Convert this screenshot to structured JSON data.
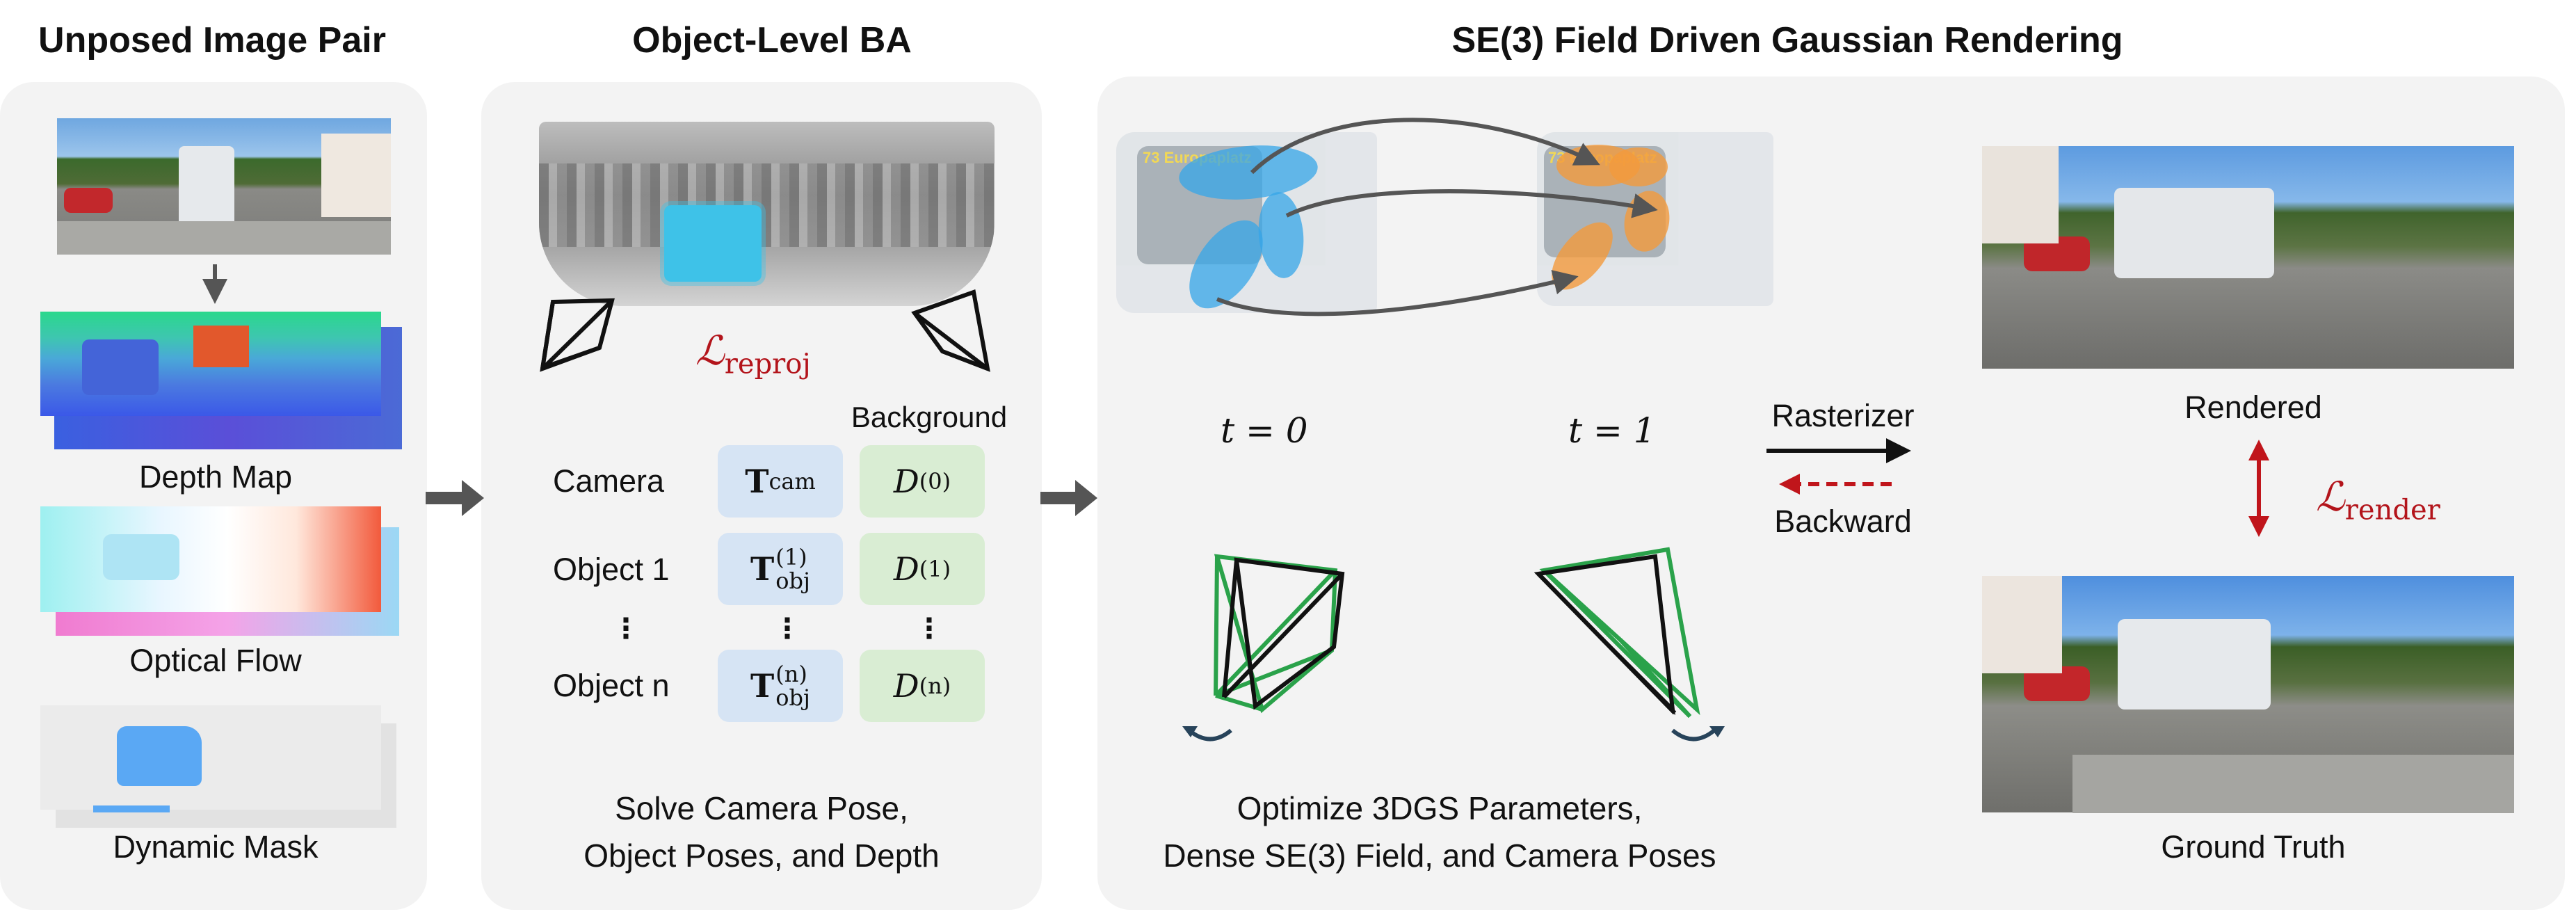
{
  "titles": {
    "col1": "Unposed Image Pair",
    "col2": "Object-Level BA",
    "col3": "SE(3) Field Driven Gaussian Rendering"
  },
  "col1": {
    "depth_label": "Depth Map",
    "flow_label": "Optical Flow",
    "mask_label": "Dynamic Mask"
  },
  "col2": {
    "loss_symbol": "ℒ",
    "loss_sub": "reproj",
    "background_header": "Background",
    "rows": [
      {
        "label": "Camera",
        "pose_main": "T",
        "pose_sub": "cam",
        "pose_sup": "",
        "depth_main": "D",
        "depth_sup": "(0)"
      },
      {
        "label": "Object 1",
        "pose_main": "T",
        "pose_sub": "obj",
        "pose_sup": "(1)",
        "depth_main": "D",
        "depth_sup": "(1)"
      },
      {
        "label": "Object n",
        "pose_main": "T",
        "pose_sub": "obj",
        "pose_sup": "(n)",
        "depth_main": "D",
        "depth_sup": "(n)"
      }
    ],
    "ellipsis": "⋮",
    "caption_line1": "Solve Camera Pose,",
    "caption_line2": "Object Poses, and Depth"
  },
  "col3": {
    "t0": "t = 0",
    "t1": "t = 1",
    "rasterizer": "Rasterizer",
    "backward": "Backward",
    "rendered": "Rendered",
    "ground_truth": "Ground Truth",
    "loss_symbol": "ℒ",
    "loss_sub": "render",
    "bus_sign": "73 Europaplatz",
    "caption_line1": "Optimize 3DGS Parameters,",
    "caption_line2": "Dense SE(3) Field, and Camera Poses"
  },
  "colors": {
    "panel_bg": "#f3f3f3",
    "accent_red": "#b3141b",
    "pose_cell": "#d6e4f4",
    "depth_cell": "#d9edd3",
    "camera_green": "#2aa24a",
    "gaussian_blue": "#35a6e8",
    "gaussian_orange": "#f39a3c"
  }
}
